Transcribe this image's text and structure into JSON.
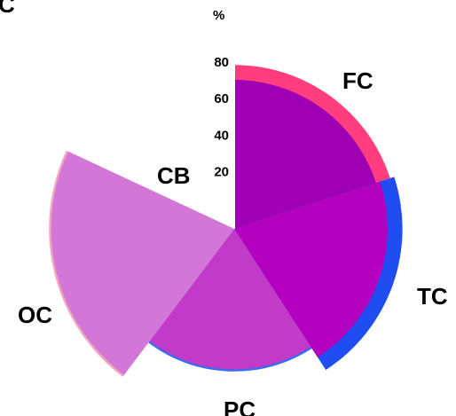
{
  "chart_data": {
    "type": "radial-sector (polar area)",
    "unit_label": "%",
    "r_ticks": [
      20,
      40,
      60,
      80
    ],
    "r_range": [
      0,
      80
    ],
    "panel_letter": "C",
    "series": [
      {
        "name": "inner",
        "colors_note": "solid purple sectors"
      },
      {
        "name": "outer",
        "colors_note": "thin colored rim showing second value"
      }
    ],
    "sectors": [
      {
        "label": "FC",
        "inner": 70,
        "outer": 77,
        "inner_color": "#a000b4",
        "outer_color": "#ff3d7f"
      },
      {
        "label": "TC",
        "inner": 72,
        "outer": 79,
        "inner_color": "#b400bf",
        "outer_color": "#1f4df2"
      },
      {
        "label": "PC",
        "inner": 66,
        "outer": 67,
        "inner_color": "#c13ac8",
        "outer_color": "#3a6cf0"
      },
      {
        "label": "OC",
        "inner": 86,
        "outer": 87,
        "inner_color": "#d277d8",
        "outer_color": "#f2a6bd"
      },
      {
        "label": "CB",
        "inner": 0,
        "outer": 0,
        "inner_color": "#d277d8",
        "outer_color": "#f2a6bd"
      }
    ]
  }
}
